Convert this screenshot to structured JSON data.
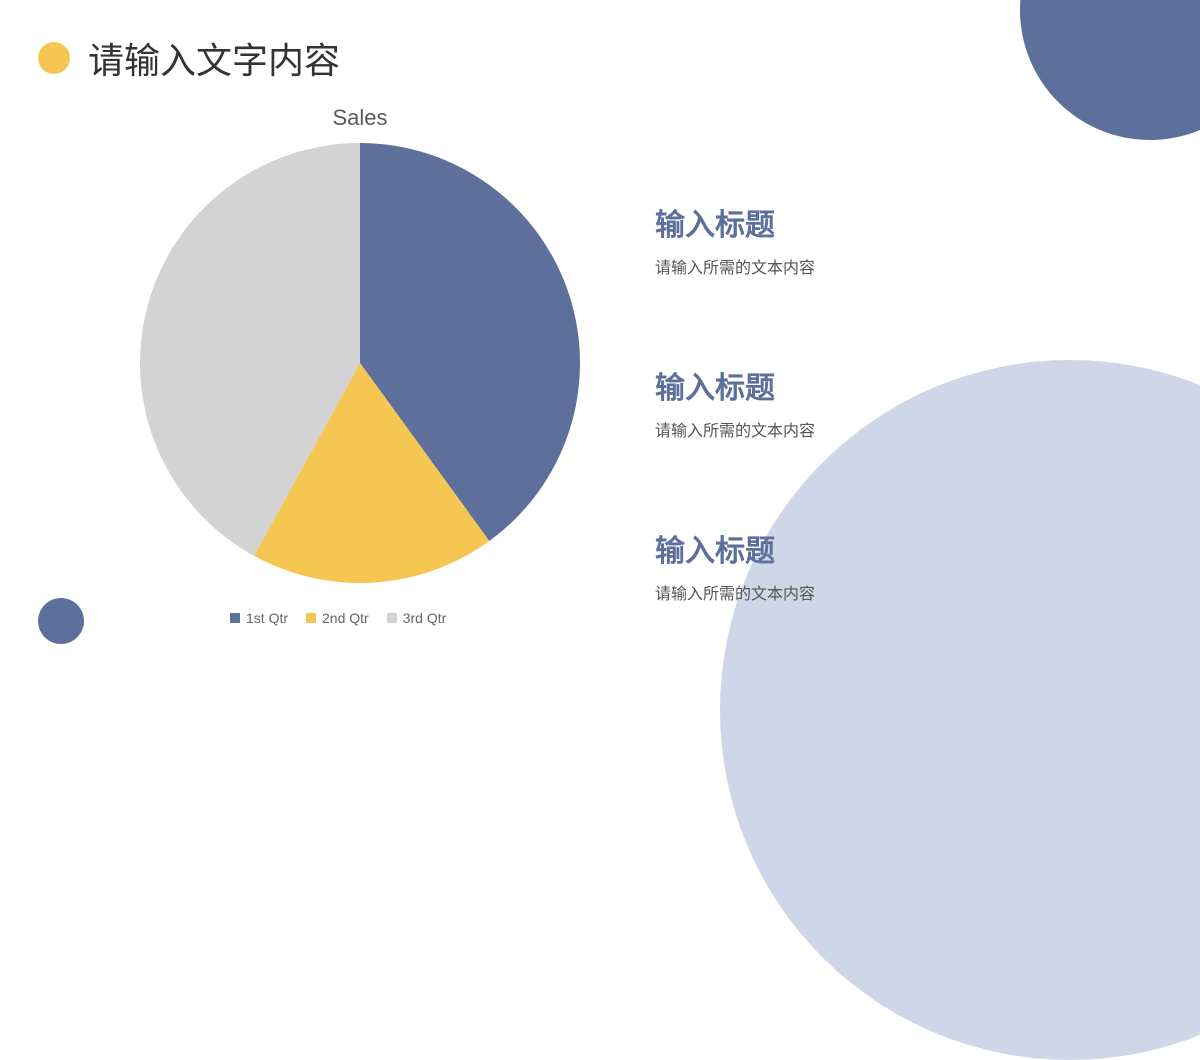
{
  "background_color": "#ffffff",
  "decorations": {
    "top_right_color": "#5d6f9b",
    "bottom_right_color": "#ced7e8",
    "bottom_left_color": "#5d6f9b",
    "header_bullet_color": "#f5c752"
  },
  "header": {
    "title": "请输入文字内容",
    "title_color": "#333333",
    "title_fontsize": 36
  },
  "chart": {
    "type": "pie",
    "title": "Sales",
    "title_color": "#5a5a5a",
    "title_fontsize": 22,
    "radius": 220,
    "slices": [
      {
        "label": "1st Qtr",
        "value": 40,
        "color": "#5d6f9b"
      },
      {
        "label": "2nd Qtr",
        "value": 18,
        "color": "#f5c752"
      },
      {
        "label": "3rd Qtr",
        "value": 42,
        "color": "#d3d3d3"
      }
    ],
    "legend_fontsize": 14,
    "legend_color": "#666666"
  },
  "text_blocks": {
    "title_color": "#5d6f9b",
    "title_fontsize": 30,
    "sub_color": "#555555",
    "sub_fontsize": 16,
    "items": [
      {
        "title": "输入标题",
        "sub": "请输入所需的文本内容"
      },
      {
        "title": "输入标题",
        "sub": "请输入所需的文本内容"
      },
      {
        "title": "输入标题",
        "sub": "请输入所需的文本内容"
      }
    ]
  }
}
